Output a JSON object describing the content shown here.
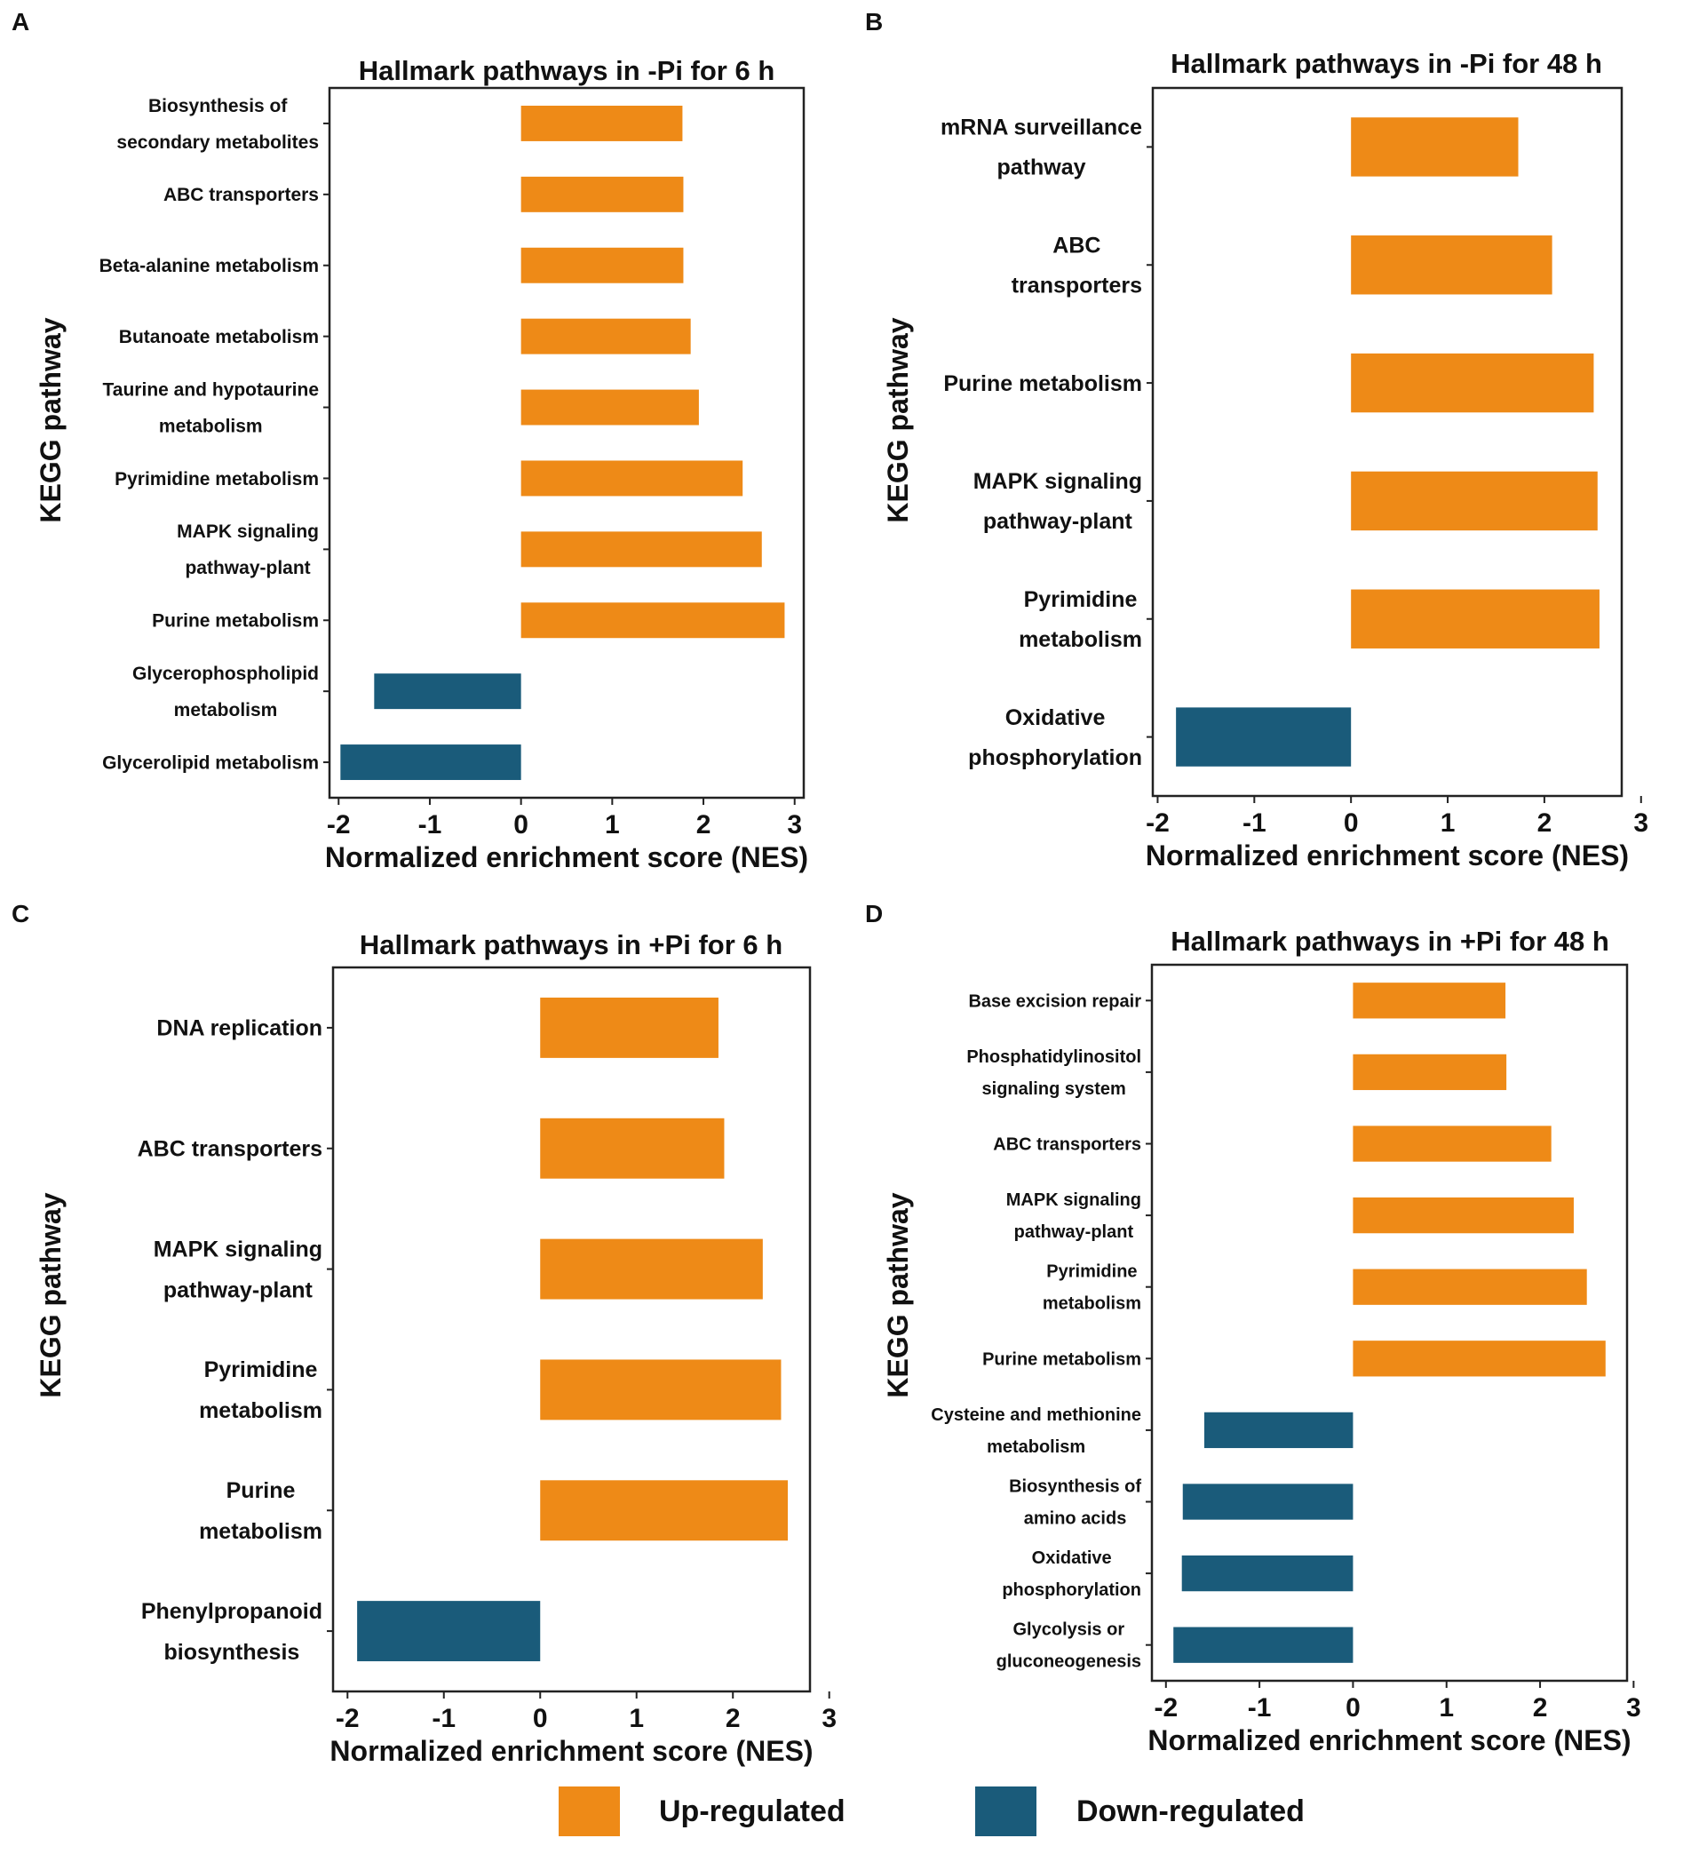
{
  "colors": {
    "up": "#EE8A17",
    "down": "#1A5B7A",
    "axis": "#222222"
  },
  "legend": {
    "up_label": "Up-regulated",
    "down_label": "Down-regulated"
  },
  "chart_data": [
    {
      "type": "bar",
      "orientation": "horizontal",
      "panel": "A",
      "title": "Hallmark pathways in -Pi for 6 h",
      "xlabel": "Normalized enrichment score (NES)",
      "ylabel": "KEGG pathway",
      "xlim": [
        -2.1,
        3.1
      ],
      "xticks": [
        -2,
        -1,
        0,
        1,
        2,
        3
      ],
      "categories": [
        [
          "Biosynthesis of",
          "secondary metabolites"
        ],
        [
          "ABC transporters"
        ],
        [
          "Beta-alanine metabolism"
        ],
        [
          "Butanoate metabolism"
        ],
        [
          "Taurine and hypotaurine",
          "metabolism"
        ],
        [
          "Pyrimidine metabolism"
        ],
        [
          "MAPK signaling",
          "pathway-plant"
        ],
        [
          "Purine metabolism"
        ],
        [
          "Glycerophospholipid",
          "metabolism"
        ],
        [
          "Glycerolipid metabolism"
        ]
      ],
      "values": [
        1.77,
        1.78,
        1.78,
        1.86,
        1.95,
        2.43,
        2.64,
        2.89,
        -1.61,
        -1.98
      ]
    },
    {
      "type": "bar",
      "orientation": "horizontal",
      "panel": "B",
      "title": "Hallmark pathways in -Pi for 48 h",
      "xlabel": "Normalized enrichment score (NES)",
      "ylabel": "KEGG pathway",
      "xlim": [
        -2.05,
        2.8
      ],
      "xticks": [
        -2,
        -1,
        0,
        1,
        2,
        3
      ],
      "categories": [
        [
          "mRNA surveillance",
          "pathway"
        ],
        [
          "ABC",
          "transporters"
        ],
        [
          "Purine metabolism"
        ],
        [
          "MAPK signaling",
          "pathway-plant"
        ],
        [
          "Pyrimidine",
          "metabolism"
        ],
        [
          "Oxidative",
          "phosphorylation"
        ]
      ],
      "values": [
        1.73,
        2.08,
        2.51,
        2.55,
        2.57,
        -1.81
      ]
    },
    {
      "type": "bar",
      "orientation": "horizontal",
      "panel": "C",
      "title": "Hallmark pathways in +Pi for 6 h",
      "xlabel": "Normalized enrichment score (NES)",
      "ylabel": "KEGG pathway",
      "xlim": [
        -2.15,
        2.8
      ],
      "xticks": [
        -2,
        -1,
        0,
        1,
        2,
        3
      ],
      "categories": [
        [
          "DNA replication"
        ],
        [
          "ABC transporters"
        ],
        [
          "MAPK signaling",
          "pathway-plant"
        ],
        [
          "Pyrimidine",
          "metabolism"
        ],
        [
          "Purine",
          "metabolism"
        ],
        [
          "Phenylpropanoid",
          "biosynthesis"
        ]
      ],
      "values": [
        1.85,
        1.91,
        2.31,
        2.5,
        2.57,
        -1.9
      ]
    },
    {
      "type": "bar",
      "orientation": "horizontal",
      "panel": "D",
      "title": "Hallmark pathways in +Pi for 48 h",
      "xlabel": "Normalized enrichment score (NES)",
      "ylabel": "KEGG pathway",
      "xlim": [
        -2.15,
        2.93
      ],
      "xticks": [
        -2,
        -1,
        0,
        1,
        2,
        3
      ],
      "categories": [
        [
          "Base excision repair"
        ],
        [
          "Phosphatidylinositol",
          "signaling system"
        ],
        [
          "ABC transporters"
        ],
        [
          "MAPK signaling",
          "pathway-plant"
        ],
        [
          "Pyrimidine",
          "metabolism"
        ],
        [
          "Purine metabolism"
        ],
        [
          "Cysteine and methionine",
          "metabolism"
        ],
        [
          "Biosynthesis of",
          "amino acids"
        ],
        [
          "Oxidative",
          "phosphorylation"
        ],
        [
          "Glycolysis or",
          "gluconeogenesis"
        ]
      ],
      "values": [
        1.63,
        1.64,
        2.12,
        2.36,
        2.5,
        2.7,
        -1.59,
        -1.82,
        -1.83,
        -1.92
      ]
    }
  ]
}
